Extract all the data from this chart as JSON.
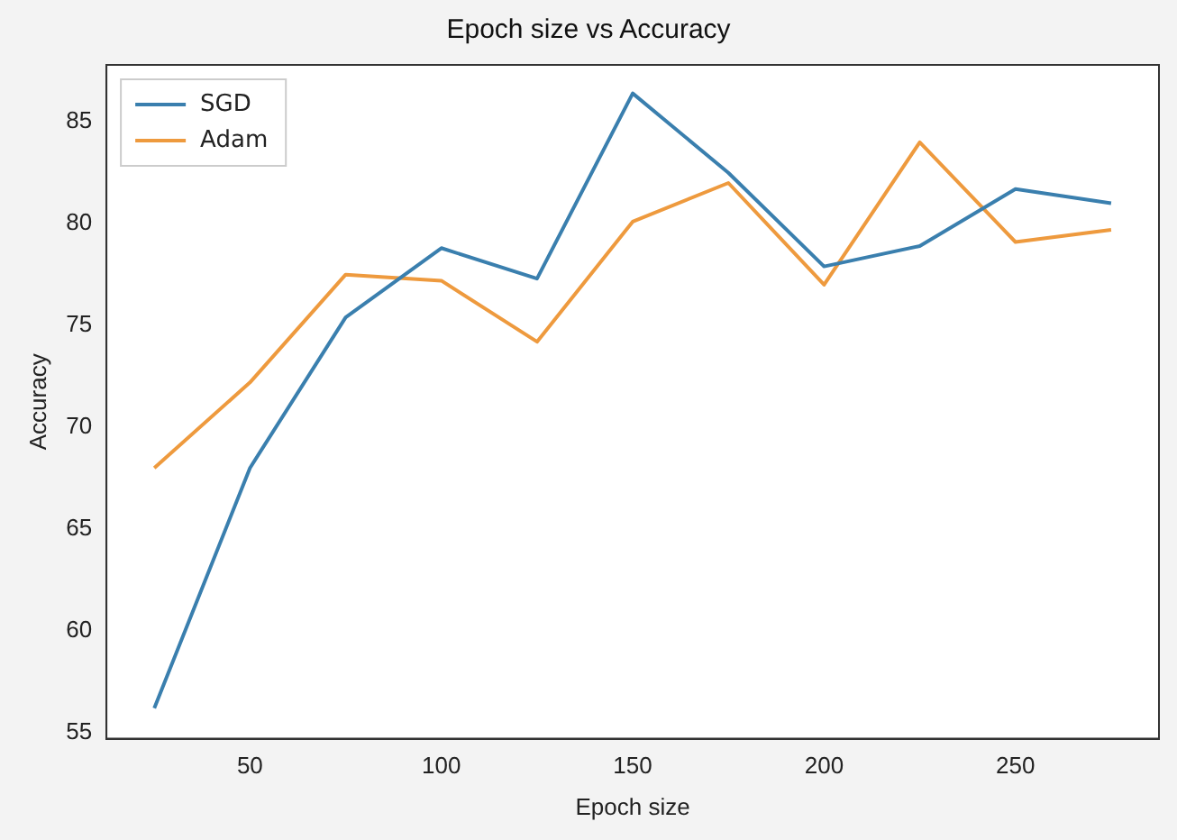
{
  "chart_data": {
    "type": "line",
    "title": "Epoch size vs Accuracy",
    "xlabel": "Epoch size",
    "ylabel": "Accuracy",
    "x": [
      25,
      50,
      75,
      100,
      125,
      150,
      175,
      200,
      225,
      250,
      275
    ],
    "series": [
      {
        "name": "SGD",
        "color": "#3a7fae",
        "values": [
          56.2,
          68.0,
          75.4,
          78.8,
          77.3,
          86.4,
          82.5,
          77.9,
          78.9,
          81.7,
          81.0
        ]
      },
      {
        "name": "Adam",
        "color": "#ee9a3e",
        "values": [
          68.0,
          72.2,
          77.5,
          77.2,
          74.2,
          80.1,
          82.0,
          77.0,
          84.0,
          79.1,
          79.7
        ]
      }
    ],
    "xlim": [
      12.5,
      287.5
    ],
    "xticks": [
      50,
      100,
      150,
      200,
      250
    ],
    "ylim": [
      54.7,
      87.8
    ],
    "yticks": [
      55,
      60,
      65,
      70,
      75,
      80,
      85
    ],
    "legend": "top left",
    "grid": false,
    "marker": "none",
    "line_style": "solid"
  }
}
